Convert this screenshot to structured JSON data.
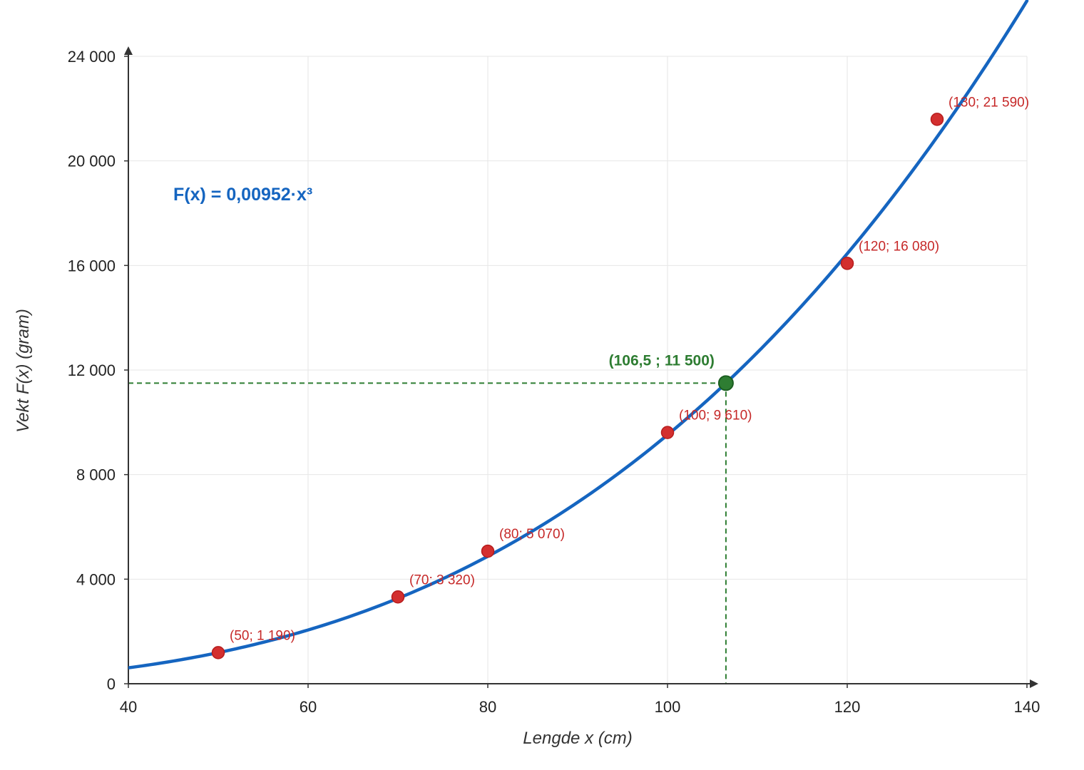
{
  "chart_data": {
    "type": "scatter",
    "xlabel": "Lengde x (cm)",
    "ylabel": "Vekt F(x) (gram)",
    "xlim": [
      40,
      140
    ],
    "ylim": [
      0,
      24000
    ],
    "x_ticks": [
      40,
      60,
      80,
      100,
      120,
      140
    ],
    "x_tick_labels": [
      "40",
      "60",
      "80",
      "100",
      "120",
      "140"
    ],
    "y_ticks": [
      0,
      4000,
      8000,
      12000,
      16000,
      20000,
      24000
    ],
    "y_tick_labels": [
      "0",
      "4 000",
      "8 000",
      "12 000",
      "16 000",
      "20 000",
      "24 000"
    ],
    "grid": true,
    "model": {
      "label": "F(x) = 0,00952·x³",
      "coefficient": 0.00952,
      "exponent": 3,
      "color": "#1565c0"
    },
    "points": [
      {
        "x": 50,
        "y": 1190,
        "label": "(50; 1 190)"
      },
      {
        "x": 70,
        "y": 3320,
        "label": "(70; 3 320)"
      },
      {
        "x": 80,
        "y": 5070,
        "label": "(80; 5 070)"
      },
      {
        "x": 100,
        "y": 9610,
        "label": "(100; 9 610)"
      },
      {
        "x": 120,
        "y": 16080,
        "label": "(120; 16 080)"
      },
      {
        "x": 130,
        "y": 21590,
        "label": "(130; 21 590)"
      }
    ],
    "points_color": "#d32f2f",
    "points_label_color": "#c62828",
    "highlight": {
      "x": 106.5,
      "y": 11500,
      "label": "(106,5 ; 11 500)",
      "color": "#2e7d32"
    }
  }
}
